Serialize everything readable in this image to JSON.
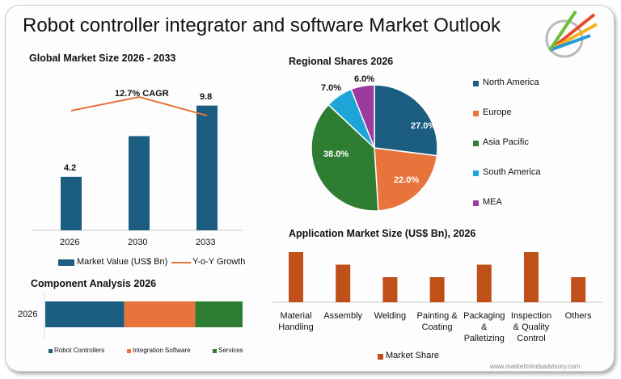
{
  "title": "Robot controller integrator and software Market Outlook",
  "website": "www.marketmindsadvisory.com",
  "colors": {
    "blue": "#1b5e82",
    "orange": "#e8743b",
    "green": "#2e7d32",
    "lightblue": "#1ea5d8",
    "purple": "#9b3b9e",
    "rust": "#c0501a"
  },
  "chart_data": [
    {
      "type": "bar",
      "title": "Global Market Size 2026 - 2033",
      "categories": [
        "2026",
        "2030",
        "2033"
      ],
      "values": [
        4.2,
        7.4,
        9.8
      ],
      "data_labels": [
        "4.2",
        "",
        "9.8"
      ],
      "annotation": "12.7% CAGR",
      "legend": [
        "Market Value (US$ Bn)",
        "Y-o-Y Growth"
      ],
      "ylim": [
        0,
        11
      ]
    },
    {
      "type": "pie",
      "title": "Regional Shares 2026",
      "categories": [
        "North America",
        "Europe",
        "Asia Pacific",
        "South America",
        "MEA"
      ],
      "values": [
        27.0,
        22.0,
        38.0,
        7.0,
        6.0
      ],
      "labels": [
        "27.0%",
        "22.0%",
        "38.0%",
        "7.0%",
        "6.0%"
      ],
      "legend_position": "right"
    },
    {
      "type": "bar",
      "title": "Component Analysis 2026",
      "orientation": "horizontal-stacked",
      "category": "2026",
      "series": [
        {
          "name": "Robot Controllers",
          "value": 40
        },
        {
          "name": "Integration Software",
          "value": 36
        },
        {
          "name": "Services",
          "value": 24
        }
      ]
    },
    {
      "type": "bar",
      "title": "Application Market Size (US$ Bn), 2026",
      "categories": [
        "Material Handling",
        "Assembly",
        "Welding",
        "Painting & Coating",
        "Packaging & Palletizing",
        "Inspection & Quality Control",
        "Others"
      ],
      "labels": [
        [
          "Material",
          "Handling"
        ],
        [
          "Assembly"
        ],
        [
          "Welding"
        ],
        [
          "Painting &",
          "Coating"
        ],
        [
          "Packaging",
          "&",
          "Palletizing"
        ],
        [
          "Inspection",
          "& Quality",
          "Control"
        ],
        [
          "Others"
        ]
      ],
      "values": [
        4,
        3,
        2,
        2,
        3,
        4,
        2
      ],
      "legend": "Market Share"
    }
  ]
}
